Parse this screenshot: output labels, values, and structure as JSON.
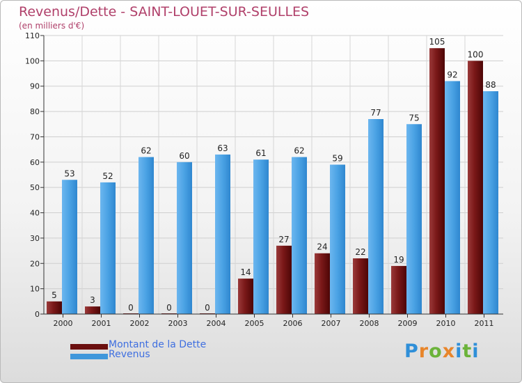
{
  "title": "Revenus/Dette - SAINT-LOUET-SUR-SEULLES",
  "subtitle": "(en milliers d'€)",
  "logo": {
    "text": "Proxiti",
    "colors": [
      "#2f8fd8",
      "#e8852a",
      "#6bb33a",
      "#e8852a",
      "#2f8fd8",
      "#6bb33a",
      "#2f8fd8"
    ]
  },
  "colors": {
    "dette": "#6b0f0f",
    "revenus": "#3f97db",
    "title": "#b0406a",
    "legend_text": "#3f6fe0"
  },
  "chart_data": {
    "type": "bar",
    "title": "Revenus/Dette - SAINT-LOUET-SUR-SEULLES",
    "ylabel": "(en milliers d'€)",
    "xlabel": "",
    "ylim": [
      0,
      110
    ],
    "yticks": [
      0,
      10,
      20,
      30,
      40,
      50,
      60,
      70,
      80,
      90,
      100,
      110
    ],
    "grid": true,
    "legend_position": "bottom-left",
    "categories": [
      "2000",
      "2001",
      "2002",
      "2003",
      "2004",
      "2005",
      "2006",
      "2007",
      "2008",
      "2009",
      "2010",
      "2011"
    ],
    "series": [
      {
        "name": "Montant de la Dette",
        "values": [
          5,
          3,
          0,
          0,
          0,
          14,
          27,
          24,
          22,
          19,
          105,
          100
        ]
      },
      {
        "name": "Revenus",
        "values": [
          53,
          52,
          62,
          60,
          63,
          61,
          62,
          59,
          77,
          75,
          92,
          88
        ]
      }
    ]
  }
}
